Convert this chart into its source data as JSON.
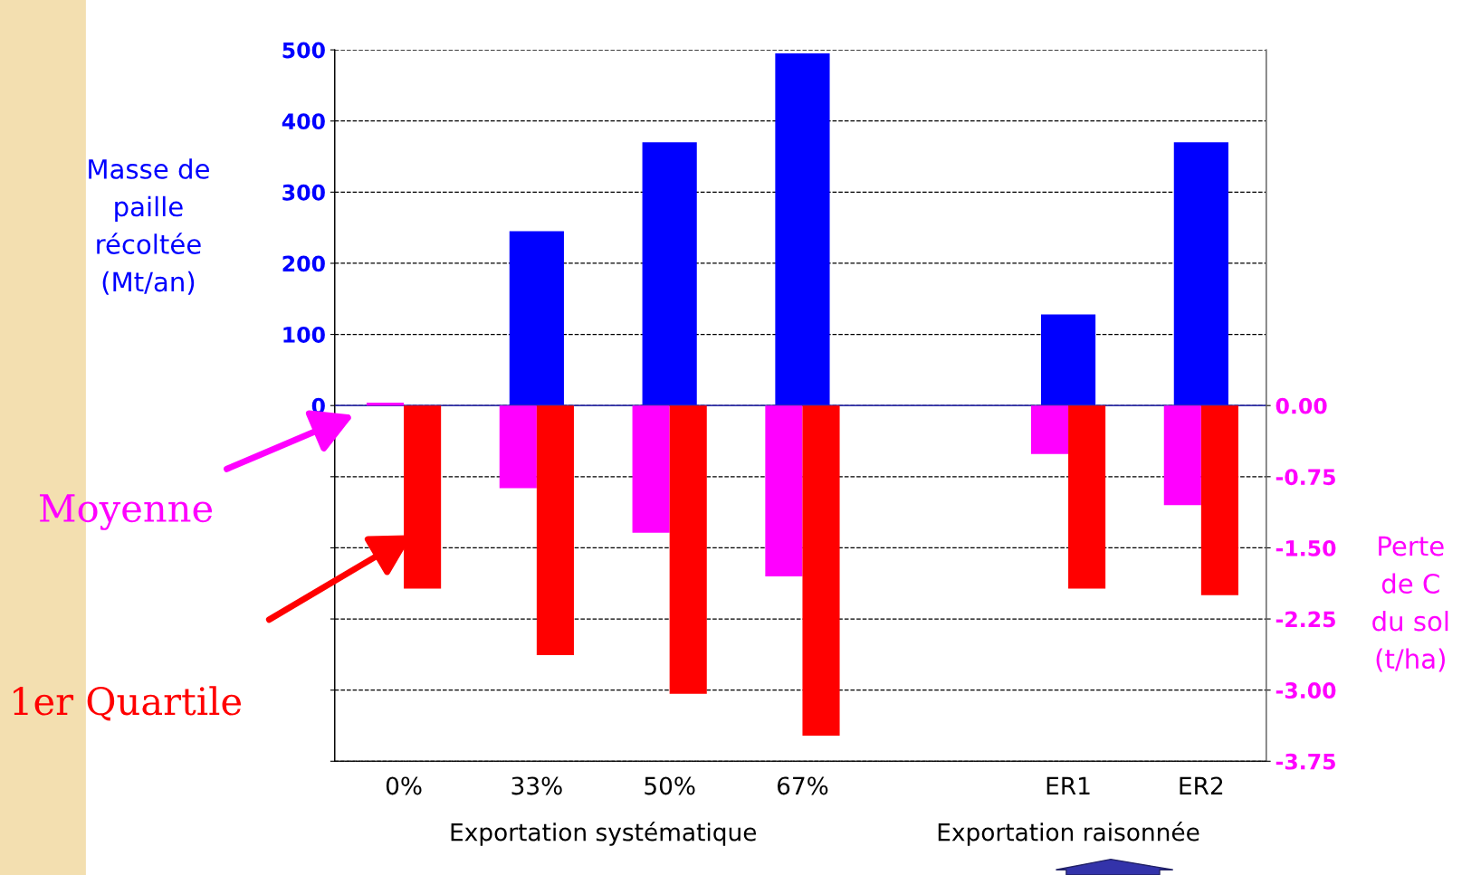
{
  "chart_data": {
    "type": "bar",
    "ylabel": "Masse de\npaille\nrécoltée\n(Mt/an)",
    "y2label": "Perte\nde C\ndu sol\n(t/ha)",
    "categories": [
      "0%",
      "33%",
      "50%",
      "67%",
      null,
      "ER1",
      "ER2"
    ],
    "series": [
      {
        "name": null,
        "color": "#0000ff",
        "values": [
          null,
          245,
          370,
          495,
          null,
          128,
          370
        ]
      },
      {
        "name": "Moyenne",
        "color": "#ff00ff",
        "axis": "y2",
        "values": [
          0.03,
          -0.87,
          -1.34,
          -1.8,
          null,
          -0.51,
          -1.05
        ]
      },
      {
        "name": "1er Quartile",
        "color": "#ff0000",
        "axis": "y2",
        "values": [
          -1.93,
          -2.63,
          -3.04,
          -3.48,
          null,
          -1.93,
          -2.0
        ]
      }
    ],
    "ylim": [
      -500,
      500
    ],
    "yticks": [
      {
        "value": -500,
        "label": null
      },
      {
        "value": -400,
        "label": null
      },
      {
        "value": -300,
        "label": null
      },
      {
        "value": -200,
        "label": null
      },
      {
        "value": -100,
        "label": null
      },
      0,
      100,
      200,
      300,
      400,
      500
    ],
    "y2lim": [
      -3.75,
      3.75
    ],
    "y2ticks": [
      {
        "value": 0,
        "label": "0.00"
      },
      {
        "value": -0.75,
        "label": "-0.75"
      },
      {
        "value": -1.5,
        "label": "-1.50"
      },
      {
        "value": -2.25,
        "label": "-2.25"
      },
      {
        "value": -3,
        "label": "-3.00"
      },
      {
        "value": -3.75,
        "label": "-3.75"
      }
    ],
    "ref_lines": [
      {
        "axis": "y",
        "value": 0,
        "color": "#3333aa"
      }
    ],
    "grid": "y",
    "legend": false,
    "annotations": [
      "Exportation systématique",
      "Exportation raisonnée"
    ]
  }
}
